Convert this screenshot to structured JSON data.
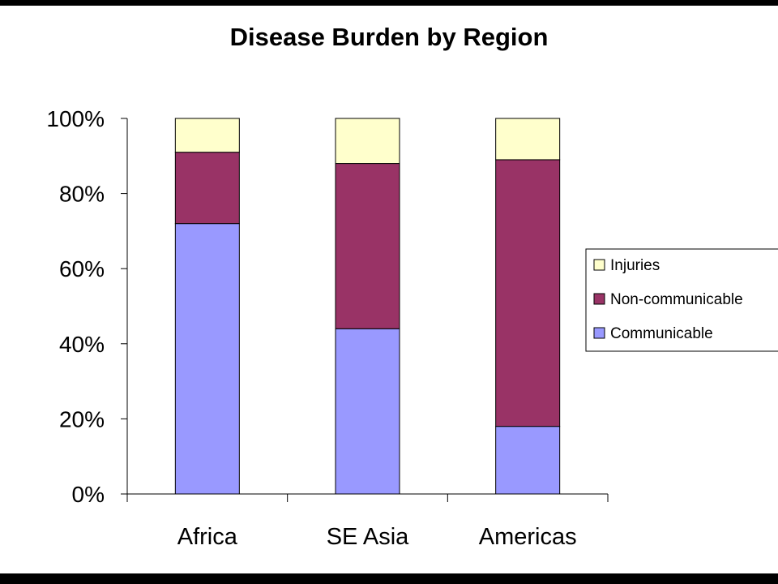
{
  "colors": {
    "Communicable": "#9999ff",
    "Non-communicable": "#993366",
    "Injuries": "#ffffcc",
    "background": "#ffffff",
    "frame": "#000000"
  },
  "chart_data": {
    "type": "bar",
    "stacked": true,
    "percent_stacked": true,
    "title": "Disease Burden by Region",
    "xlabel": "",
    "ylabel": "",
    "categories": [
      "Africa",
      "SE Asia",
      "Americas"
    ],
    "series": [
      {
        "name": "Communicable",
        "values": [
          72,
          44,
          18
        ]
      },
      {
        "name": "Non-communicable",
        "values": [
          19,
          44,
          71
        ]
      },
      {
        "name": "Injuries",
        "values": [
          9,
          12,
          11
        ]
      }
    ],
    "ylim": [
      0,
      100
    ],
    "yticks": [
      "0%",
      "20%",
      "40%",
      "60%",
      "80%",
      "100%"
    ],
    "legend": {
      "position": "right",
      "entries": [
        "Injuries",
        "Non-communicable",
        "Communicable"
      ]
    },
    "grid": false
  }
}
